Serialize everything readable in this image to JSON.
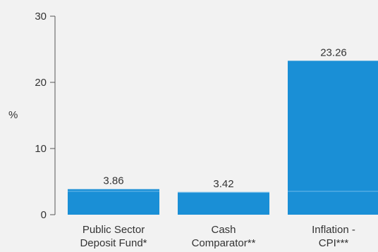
{
  "chart_data": {
    "type": "bar",
    "title": "",
    "xlabel": "",
    "ylabel": "%",
    "ylim": [
      0,
      30
    ],
    "yticks": [
      0,
      10,
      20,
      30
    ],
    "grid": false,
    "categories": [
      [
        "Public Sector",
        "Deposit Fund*"
      ],
      [
        "Cash",
        "Comparator**"
      ],
      [
        "Inflation -",
        "CPI***"
      ]
    ],
    "series": [
      {
        "values": [
          3.86,
          3.42,
          23.26
        ],
        "labels": [
          "3.86",
          "3.42",
          "23.26"
        ]
      }
    ],
    "colors": {
      "bar": "#1a8fd6",
      "bar_band": "#5fb3e6",
      "axis": "#555555",
      "text": "#333333"
    }
  }
}
